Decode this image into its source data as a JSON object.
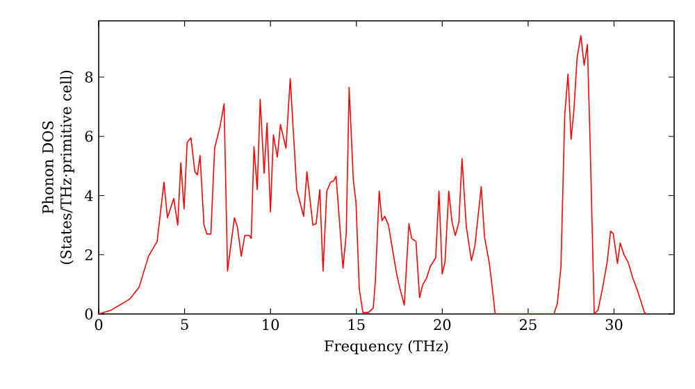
{
  "chart_data": {
    "type": "line",
    "xlabel": "Frequency (THz)",
    "ylabel": "Phonon DOS (States/THz·primitive cell)",
    "xlim": [
      0,
      33.5
    ],
    "ylim": [
      0,
      9.9
    ],
    "xticks": [
      0,
      5,
      10,
      15,
      20,
      25,
      30
    ],
    "yticks": [
      0,
      2,
      4,
      6,
      8
    ],
    "grid": false,
    "marker": "none",
    "line_style": "solid",
    "series": [
      {
        "color": "#ff0000",
        "x": [
          0,
          0.73,
          1.8,
          2.35,
          2.9,
          3.4,
          3.8,
          4.0,
          4.37,
          4.6,
          4.78,
          4.97,
          5.15,
          5.37,
          5.6,
          5.75,
          5.9,
          6.13,
          6.3,
          6.53,
          6.75,
          7.07,
          7.3,
          7.5,
          7.9,
          8.07,
          8.3,
          8.5,
          8.77,
          8.88,
          9.04,
          9.23,
          9.4,
          9.63,
          9.8,
          10.0,
          10.17,
          10.4,
          10.58,
          10.9,
          11.15,
          11.53,
          11.93,
          12.12,
          12.47,
          12.66,
          12.87,
          13.06,
          13.28,
          13.5,
          13.68,
          13.82,
          14.22,
          14.41,
          14.58,
          14.82,
          14.98,
          15.17,
          15.38,
          15.71,
          15.98,
          16.1,
          16.33,
          16.49,
          16.65,
          16.87,
          17.33,
          17.52,
          17.79,
          18.06,
          18.22,
          18.47,
          18.68,
          18.87,
          19.08,
          19.3,
          19.62,
          19.81,
          20.0,
          20.16,
          20.38,
          20.57,
          20.76,
          20.97,
          21.15,
          21.4,
          21.7,
          21.9,
          22.27,
          22.46,
          22.73,
          22.86,
          23.08,
          26.5,
          26.7,
          26.91,
          27.13,
          27.32,
          27.5,
          27.66,
          27.85,
          28.07,
          28.26,
          28.45,
          28.61,
          28.85,
          29.07,
          29.34,
          29.6,
          29.8,
          29.96,
          30.2,
          30.36,
          30.58,
          30.82,
          31.1,
          31.36,
          31.77,
          31.9
        ],
        "values": [
          0,
          0.13,
          0.5,
          0.9,
          1.95,
          2.45,
          4.45,
          3.25,
          3.9,
          3.0,
          5.1,
          3.55,
          5.8,
          5.95,
          4.8,
          4.7,
          5.35,
          3.0,
          2.7,
          2.7,
          5.6,
          6.35,
          7.1,
          1.45,
          3.25,
          2.95,
          1.95,
          2.65,
          2.65,
          2.55,
          5.65,
          4.2,
          7.25,
          4.75,
          6.45,
          3.45,
          6.05,
          5.3,
          6.4,
          5.6,
          7.95,
          4.2,
          3.3,
          4.8,
          3.0,
          3.05,
          4.2,
          1.45,
          4.15,
          4.45,
          4.5,
          4.65,
          1.55,
          2.7,
          7.65,
          4.55,
          3.75,
          0.85,
          0.05,
          0.05,
          0.2,
          1.05,
          4.15,
          3.15,
          3.3,
          3.0,
          1.4,
          0.9,
          0.3,
          3.05,
          2.55,
          2.45,
          0.55,
          1.0,
          1.2,
          1.6,
          1.9,
          4.15,
          1.35,
          1.75,
          4.15,
          3.1,
          2.65,
          3.1,
          5.25,
          2.95,
          1.8,
          2.3,
          4.3,
          2.6,
          1.75,
          1.15,
          0,
          0,
          0.35,
          1.6,
          6.7,
          8.1,
          5.9,
          6.85,
          8.65,
          9.4,
          8.4,
          9.1,
          5.75,
          0,
          0.13,
          0.9,
          1.75,
          2.8,
          2.7,
          1.7,
          2.4,
          2.0,
          1.75,
          1.2,
          0.8,
          0.05,
          0
        ]
      }
    ]
  }
}
